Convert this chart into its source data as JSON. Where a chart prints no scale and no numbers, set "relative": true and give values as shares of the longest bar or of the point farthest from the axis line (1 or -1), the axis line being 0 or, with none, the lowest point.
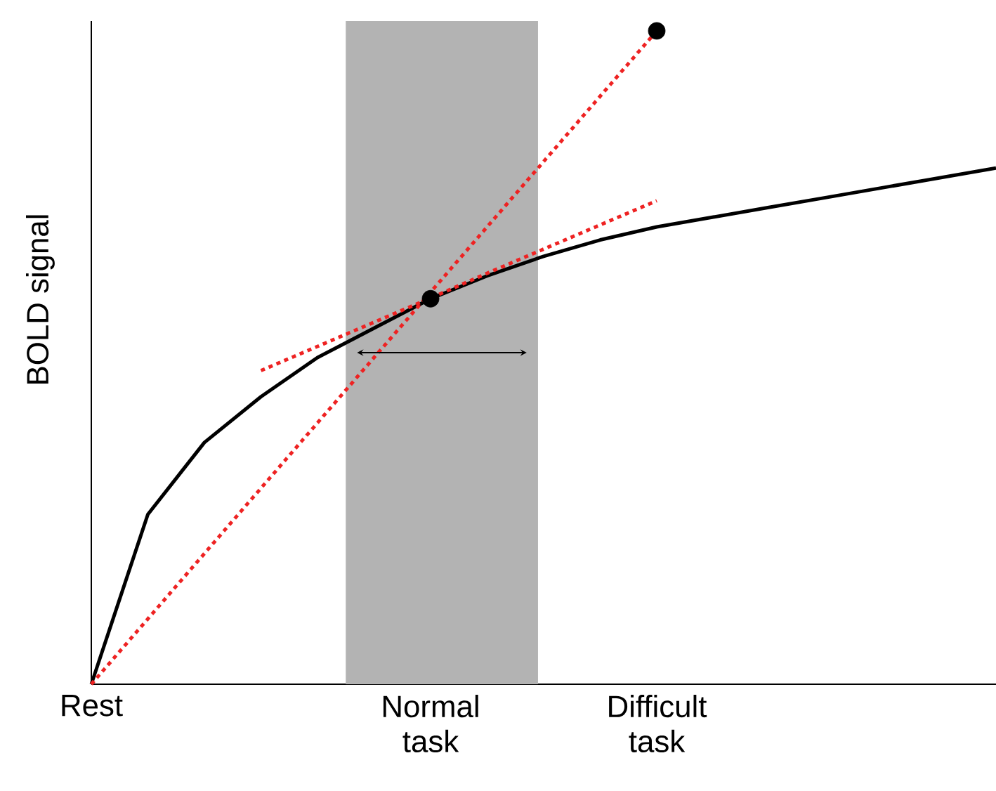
{
  "chart_data": {
    "type": "line",
    "relative": true,
    "ylabel": "BOLD signal",
    "tick_labels": "x",
    "categories": [
      "Rest",
      null,
      null,
      null,
      null,
      null,
      "Normal task",
      null,
      null,
      null,
      "Difficult task",
      null,
      null,
      null,
      null,
      null,
      null
    ],
    "series": [
      {
        "type": "line",
        "color": "#000000",
        "line_style": "solid",
        "marker": "none",
        "values": [
          0,
          0.26,
          0.37,
          0.44,
          0.5,
          0.545,
          0.59,
          0.625,
          0.655,
          0.68,
          0.7,
          0.715,
          0.73,
          0.745,
          0.76,
          0.775,
          0.79
        ]
      },
      {
        "type": "line",
        "color": "#ee2222",
        "line_style": "dotted",
        "marker": "none",
        "values": [
          0,
          0.1,
          0.2,
          0.3,
          0.4,
          0.5,
          0.6,
          0.7,
          0.8,
          0.9,
          1.0,
          null,
          null,
          null,
          null,
          null,
          null
        ]
      },
      {
        "type": "line",
        "color": "#ee2222",
        "line_style": "dotted",
        "marker": "none",
        "values": [
          null,
          null,
          null,
          0.48,
          0.517,
          0.554,
          0.591,
          0.629,
          0.666,
          0.703,
          0.74,
          null,
          null,
          null,
          null,
          null,
          null
        ]
      },
      {
        "type": "scatter",
        "color": "#000000",
        "marker": "circle",
        "values": [
          null,
          null,
          null,
          null,
          null,
          null,
          0.59,
          null,
          null,
          null,
          1.0,
          null,
          null,
          null,
          null,
          null,
          null
        ]
      }
    ]
  }
}
